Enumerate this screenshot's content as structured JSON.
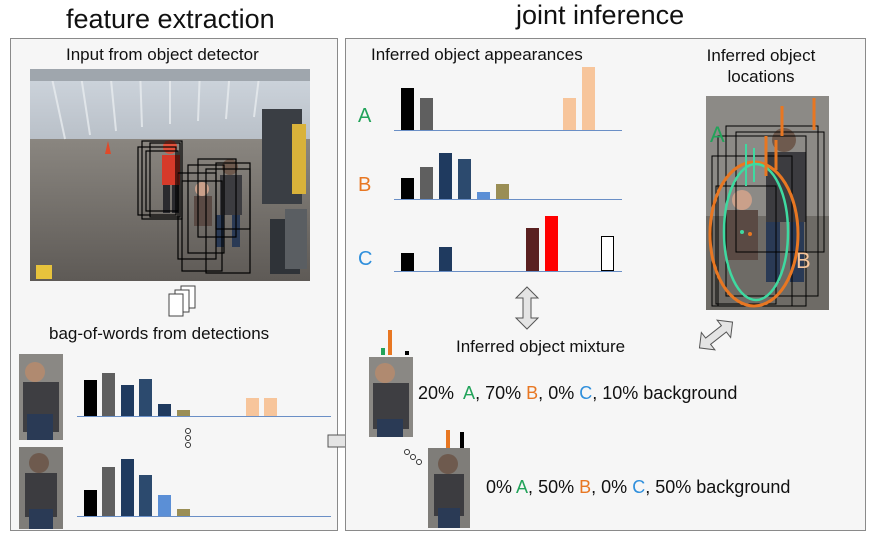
{
  "headings": {
    "left": "feature extraction",
    "right": "joint inference"
  },
  "left_panel": {
    "input_label": "Input from object detector",
    "bow_label": "bag-of-words from detections"
  },
  "right_panel": {
    "appearances_label": "Inferred object appearances",
    "locations_label": "Inferred object locations",
    "mixture_label": "Inferred object mixture"
  },
  "objects": [
    {
      "letter": "A",
      "color": "#22a35a"
    },
    {
      "letter": "B",
      "color": "#e87722"
    },
    {
      "letter": "C",
      "color": "#2f8fdc"
    }
  ],
  "location_letters": {
    "a": "A",
    "b": "B"
  },
  "mixtures": [
    {
      "p_a": "20%",
      "l_a": "A",
      "s1": ",",
      "p_b": "70%",
      "l_b": "B",
      "s2": ",",
      "p_c": "0%",
      "l_c": "C",
      "s3": ",",
      "p_bg": "10%",
      "bg": "background"
    },
    {
      "p_a": "0%",
      "l_a": "A",
      "s1": ",",
      "p_b": "50%",
      "l_b": "B",
      "s2": ",",
      "p_c": "0%",
      "l_c": "C",
      "s3": ",",
      "p_bg": "50%",
      "bg": "background"
    }
  ],
  "colors": {
    "black": "#000000",
    "dark_gray": "#5f5f5f",
    "navy": "#1f3a5f",
    "slate": "#2c4a6e",
    "light_blue": "#5b8fd6",
    "olive": "#9a8e55",
    "peach": "#f7c59b",
    "maroon": "#5a2020",
    "red": "#ff0000",
    "accent_a": "#22a35a",
    "accent_b": "#e87722",
    "accent_c": "#2f8fdc"
  }
}
